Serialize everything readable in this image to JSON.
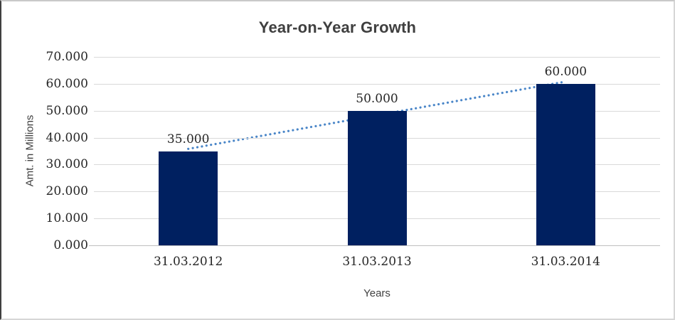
{
  "chart_data": {
    "type": "bar",
    "title": "Year-on-Year Growth",
    "xlabel": "Years",
    "ylabel": "Amt. in Millions",
    "categories": [
      "31.03.2012",
      "31.03.2013",
      "31.03.2014"
    ],
    "values": [
      35000,
      50000,
      60000
    ],
    "data_labels": [
      "35.000",
      "50.000",
      "60.000"
    ],
    "y_ticks": [
      {
        "value": 0,
        "label": "0.000"
      },
      {
        "value": 10000,
        "label": "10.000"
      },
      {
        "value": 20000,
        "label": "20.000"
      },
      {
        "value": 30000,
        "label": "30.000"
      },
      {
        "value": 40000,
        "label": "40.000"
      },
      {
        "value": 50000,
        "label": "50.000"
      },
      {
        "value": 60000,
        "label": "60.000"
      },
      {
        "value": 70000,
        "label": "70.000"
      }
    ],
    "ylim": [
      0,
      70000
    ],
    "grid": true,
    "legend": "none",
    "trendline": {
      "type": "linear",
      "style": "dotted",
      "color": "#4a86c8"
    },
    "colors": {
      "bar": "#002060",
      "gridline": "#d9d9d9",
      "axis_line": "#bfbfbf",
      "title_text": "#3f3f3f",
      "tick_text": "#262626"
    }
  }
}
